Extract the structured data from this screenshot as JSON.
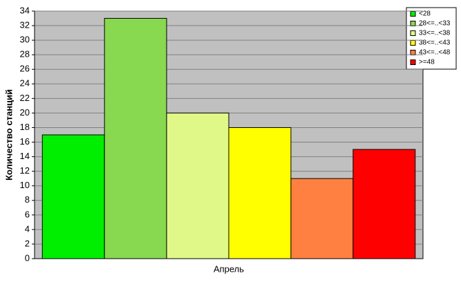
{
  "chart_data": {
    "type": "bar",
    "y_label": "Количество станций",
    "categories": [
      "Апрель"
    ],
    "series": [
      {
        "name": "<28",
        "color": "#00ee00",
        "values": [
          17
        ]
      },
      {
        "name": "28<=..<33",
        "color": "#88d850",
        "values": [
          33
        ]
      },
      {
        "name": "33<=..<38",
        "color": "#e0f888",
        "values": [
          20
        ]
      },
      {
        "name": "38<=..<43",
        "color": "#ffff00",
        "values": [
          18
        ]
      },
      {
        "name": "43<=..<48",
        "color": "#ff8040",
        "values": [
          11
        ]
      },
      {
        "name": ">=48",
        "color": "#ff0000",
        "values": [
          15
        ]
      }
    ],
    "ylim": [
      0,
      34
    ],
    "yticks": [
      0,
      2,
      4,
      6,
      8,
      10,
      12,
      14,
      16,
      18,
      20,
      22,
      24,
      26,
      28,
      30,
      32,
      34
    ],
    "grid": true,
    "legend": "top-right"
  }
}
